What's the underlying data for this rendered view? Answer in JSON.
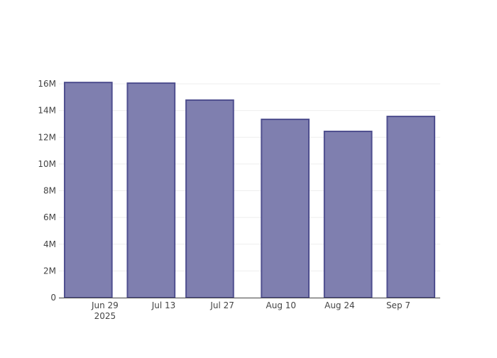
{
  "chart_data": {
    "type": "bar",
    "x": [
      "2025-06-25",
      "2025-07-10",
      "2025-07-24",
      "2025-08-11",
      "2025-08-26",
      "2025-09-10"
    ],
    "values": [
      16100000,
      16050000,
      14780000,
      13340000,
      12440000,
      13560000
    ],
    "ylim": [
      0,
      16000000
    ],
    "xlim": [
      "2025-06-18",
      "2025-09-17"
    ],
    "yticks": [
      0,
      2000000,
      4000000,
      6000000,
      8000000,
      10000000,
      12000000,
      14000000,
      16000000
    ],
    "ytick_labels": [
      "0",
      "2M",
      "4M",
      "6M",
      "8M",
      "10M",
      "12M",
      "14M",
      "16M"
    ],
    "xticks": [
      "2025-06-29",
      "2025-07-13",
      "2025-07-27",
      "2025-08-10",
      "2025-08-24",
      "2025-09-07"
    ],
    "xtick_labels": [
      "Jun 29",
      "Jul 13",
      "Jul 27",
      "Aug 10",
      "Aug 24",
      "Sep 7"
    ],
    "xtick_year_label": "2025",
    "grid": true,
    "colors": {
      "fill": "#7f7faf",
      "stroke": "#4f4f8f",
      "grid": "#eeeeee",
      "axis": "#444444"
    }
  }
}
